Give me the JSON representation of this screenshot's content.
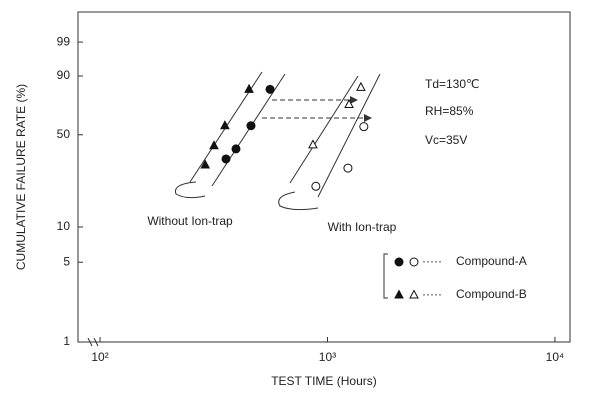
{
  "chart_data": {
    "type": "probability-scatter",
    "x_label": "TEST TIME (Hours)",
    "y_label": "CUMULATIVE FAILURE RATE (%)",
    "x_log": true,
    "y_scale": "weibull",
    "xlim": [
      80,
      11650
    ],
    "ylim": [
      1,
      99.98
    ],
    "xticks": [
      {
        "value": 100,
        "label": "10²"
      },
      {
        "value": 1000,
        "label": "10³"
      },
      {
        "value": 10000,
        "label": "10⁴"
      }
    ],
    "yticks": [
      1,
      5,
      10,
      50,
      90,
      99
    ],
    "group_labels": [
      "Without Ion-trap",
      "With Ion-trap"
    ],
    "annotations": [
      "Td=130℃",
      "RH=85%",
      "Vc=35V"
    ],
    "legend_dots": "·····",
    "series": [
      {
        "name": "Compound-A",
        "marker": "circle",
        "color": "#111",
        "groups": [
          {
            "x": [
              358,
              396,
              461,
              559
            ],
            "values": [
              34.5,
              40.5,
              56.6,
              82.7
            ]
          },
          {
            "x": [
              889,
              1230,
              1445
            ],
            "values": [
              21.5,
              29.6,
              55.9
            ]
          }
        ]
      },
      {
        "name": "Compound-B",
        "marker": "triangle",
        "color": "#111",
        "groups": [
          {
            "x": [
              290,
              317,
              354,
              452
            ],
            "values": [
              31.2,
              42.5,
              56.6,
              82.7
            ]
          },
          {
            "x": [
              863,
              1244,
              1403
            ],
            "values": [
              43.1,
              72.4,
              83.9
            ]
          }
        ]
      }
    ]
  }
}
